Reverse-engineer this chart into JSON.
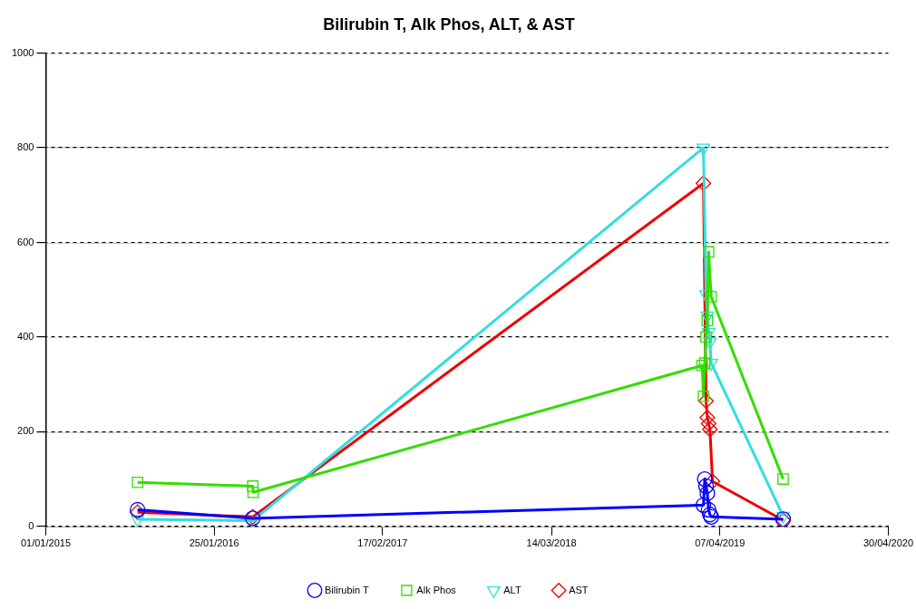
{
  "chart_data": {
    "type": "line",
    "title": "Bilirubin T, Alk Phos, ALT, & AST",
    "xlim": [
      "2015-01-01",
      "2020-04-30"
    ],
    "xticks": [
      {
        "value": "2015-01-01",
        "label": "01/01/2015"
      },
      {
        "value": "2016-01-25",
        "label": "25/01/2016"
      },
      {
        "value": "2017-02-17",
        "label": "17/02/2017"
      },
      {
        "value": "2018-03-14",
        "label": "14/03/2018"
      },
      {
        "value": "2019-04-07",
        "label": "07/04/2019"
      },
      {
        "value": "2020-04-30",
        "label": "30/04/2020"
      }
    ],
    "ylim": [
      0,
      1000
    ],
    "yticks": [
      0,
      200,
      400,
      600,
      800,
      1000
    ],
    "grid": "y",
    "legend": "bottom",
    "line_style": "solid",
    "series": [
      {
        "name": "Bilirubin T",
        "color": "#0000ff",
        "marker": "circle",
        "x": [
          "2015-08-01",
          "2016-04-23",
          "2019-02-28",
          "2019-03-03",
          "2019-03-06",
          "2019-03-09",
          "2019-03-12",
          "2019-03-15",
          "2019-03-18",
          "2019-08-31"
        ],
        "values": [
          35,
          17,
          45,
          100,
          85,
          70,
          35,
          25,
          20,
          15
        ]
      },
      {
        "name": "Alk Phos",
        "color": "#33dd00",
        "marker": "square",
        "x": [
          "2015-08-01",
          "2016-04-23",
          "2016-04-24",
          "2019-02-25",
          "2019-02-28",
          "2019-03-03",
          "2019-03-06",
          "2019-03-09",
          "2019-03-12",
          "2019-03-18",
          "2019-08-31"
        ],
        "values": [
          93,
          85,
          72,
          340,
          275,
          345,
          400,
          435,
          580,
          485,
          100
        ]
      },
      {
        "name": "ALT",
        "color": "#33dddd",
        "marker": "triangle",
        "x": [
          "2015-08-01",
          "2016-04-23",
          "2019-02-28",
          "2019-03-06",
          "2019-03-09",
          "2019-03-12",
          "2019-03-15",
          "2019-03-18",
          "2019-08-31"
        ],
        "values": [
          15,
          12,
          800,
          490,
          445,
          410,
          390,
          345,
          22
        ]
      },
      {
        "name": "AST",
        "color": "#ee0000",
        "marker": "diamond",
        "x": [
          "2015-08-01",
          "2016-04-23",
          "2019-02-28",
          "2019-03-06",
          "2019-03-09",
          "2019-03-12",
          "2019-03-15",
          "2019-03-21",
          "2019-08-31"
        ],
        "values": [
          30,
          20,
          725,
          265,
          230,
          217,
          205,
          95,
          13
        ]
      }
    ]
  }
}
